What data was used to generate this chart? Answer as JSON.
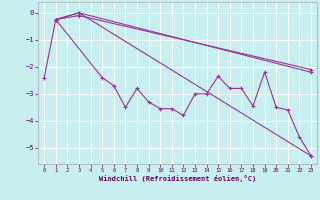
{
  "xlabel": "Windchill (Refroidissement éolien,°C)",
  "background_color": "#c8eef0",
  "grid_color": "#ffffff",
  "line_color": "#993399",
  "xlim": [
    -0.5,
    23.5
  ],
  "ylim": [
    -5.6,
    0.4
  ],
  "yticks": [
    0,
    -1,
    -2,
    -3,
    -4,
    -5
  ],
  "xticks": [
    0,
    1,
    2,
    3,
    4,
    5,
    6,
    7,
    8,
    9,
    10,
    11,
    12,
    13,
    14,
    15,
    16,
    17,
    18,
    19,
    20,
    21,
    22,
    23
  ],
  "line1_x": [
    1,
    3,
    23
  ],
  "line1_y": [
    -0.25,
    0.0,
    -5.3
  ],
  "line2_x": [
    1,
    3,
    23
  ],
  "line2_y": [
    -0.25,
    0.0,
    -2.2
  ],
  "line3_x": [
    1,
    3,
    23
  ],
  "line3_y": [
    -0.25,
    -0.1,
    -2.1
  ],
  "line4_x": [
    0,
    1,
    5,
    6,
    7,
    8,
    9,
    10,
    11,
    12,
    13,
    14,
    15,
    16,
    17,
    18,
    19,
    20,
    21,
    22,
    23
  ],
  "line4_y": [
    -2.4,
    -0.25,
    -2.4,
    -2.7,
    -3.5,
    -2.8,
    -3.3,
    -3.55,
    -3.55,
    -3.8,
    -3.0,
    -3.0,
    -2.35,
    -2.8,
    -2.8,
    -3.45,
    -2.2,
    -3.5,
    -3.6,
    -4.6,
    -5.3
  ]
}
